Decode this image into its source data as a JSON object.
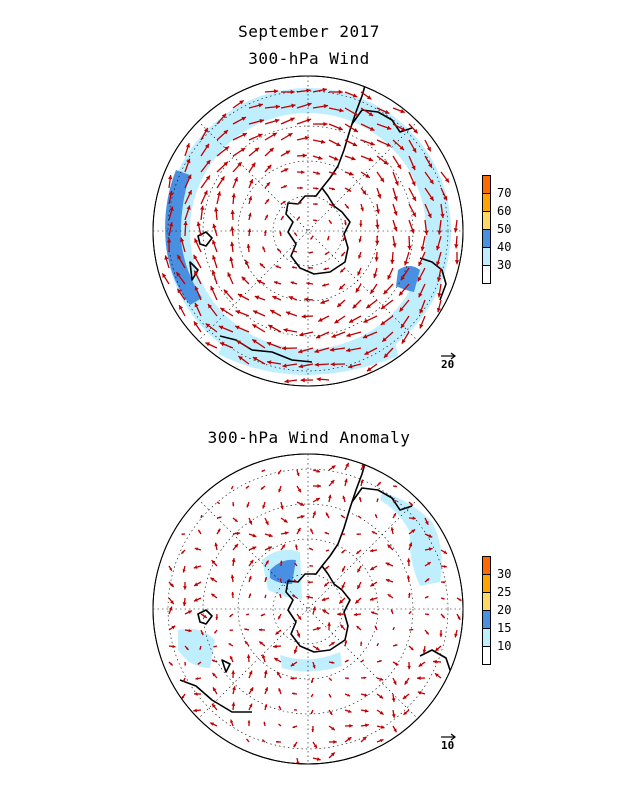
{
  "title": "September 2017",
  "top_panel": {
    "subtitle": "300-hPa Wind",
    "colorbar": {
      "labels": [
        "70",
        "60",
        "50",
        "40",
        "30"
      ],
      "colors": [
        "#ff6a00",
        "#ffa500",
        "#ffd966",
        "#4a90e2",
        "#bfefff",
        "#ffffff"
      ]
    },
    "reference_vector": "20"
  },
  "bottom_panel": {
    "subtitle": "300-hPa Wind Anomaly",
    "colorbar": {
      "labels": [
        "30",
        "25",
        "20",
        "15",
        "10"
      ],
      "colors": [
        "#ff6a00",
        "#ffa500",
        "#ffd966",
        "#4a90e2",
        "#bfefff",
        "#ffffff"
      ]
    },
    "reference_vector": "10"
  },
  "colors": {
    "vector": "#c00000",
    "light_shade": "#bfefff",
    "dark_shade": "#4a90e2",
    "coast": "#000000"
  }
}
